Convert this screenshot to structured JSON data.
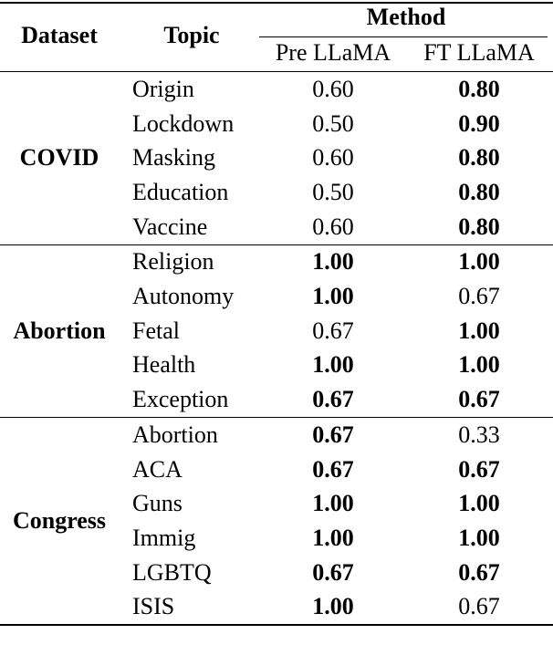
{
  "table": {
    "header": {
      "dataset": "Dataset",
      "topic": "Topic",
      "method": "Method",
      "columns": [
        "Pre LLaMA",
        "FT LLaMA"
      ]
    },
    "groups": [
      {
        "dataset": "COVID",
        "rows": [
          {
            "topic": "Origin",
            "values": [
              "0.60",
              "0.80"
            ],
            "bold": [
              false,
              true
            ]
          },
          {
            "topic": "Lockdown",
            "values": [
              "0.50",
              "0.90"
            ],
            "bold": [
              false,
              true
            ]
          },
          {
            "topic": "Masking",
            "values": [
              "0.60",
              "0.80"
            ],
            "bold": [
              false,
              true
            ]
          },
          {
            "topic": "Education",
            "values": [
              "0.50",
              "0.80"
            ],
            "bold": [
              false,
              true
            ]
          },
          {
            "topic": "Vaccine",
            "values": [
              "0.60",
              "0.80"
            ],
            "bold": [
              false,
              true
            ]
          }
        ]
      },
      {
        "dataset": "Abortion",
        "rows": [
          {
            "topic": "Religion",
            "values": [
              "1.00",
              "1.00"
            ],
            "bold": [
              true,
              true
            ]
          },
          {
            "topic": "Autonomy",
            "values": [
              "1.00",
              "0.67"
            ],
            "bold": [
              true,
              false
            ]
          },
          {
            "topic": "Fetal",
            "values": [
              "0.67",
              "1.00"
            ],
            "bold": [
              false,
              true
            ]
          },
          {
            "topic": "Health",
            "values": [
              "1.00",
              "1.00"
            ],
            "bold": [
              true,
              true
            ]
          },
          {
            "topic": "Exception",
            "values": [
              "0.67",
              "0.67"
            ],
            "bold": [
              true,
              true
            ]
          }
        ]
      },
      {
        "dataset": "Congress",
        "rows": [
          {
            "topic": "Abortion",
            "values": [
              "0.67",
              "0.33"
            ],
            "bold": [
              true,
              false
            ]
          },
          {
            "topic": "ACA",
            "values": [
              "0.67",
              "0.67"
            ],
            "bold": [
              true,
              true
            ]
          },
          {
            "topic": "Guns",
            "values": [
              "1.00",
              "1.00"
            ],
            "bold": [
              true,
              true
            ]
          },
          {
            "topic": "Immig",
            "values": [
              "1.00",
              "1.00"
            ],
            "bold": [
              true,
              true
            ]
          },
          {
            "topic": "LGBTQ",
            "values": [
              "0.67",
              "0.67"
            ],
            "bold": [
              true,
              true
            ]
          },
          {
            "topic": "ISIS",
            "values": [
              "1.00",
              "0.67"
            ],
            "bold": [
              true,
              false
            ]
          }
        ]
      }
    ]
  }
}
